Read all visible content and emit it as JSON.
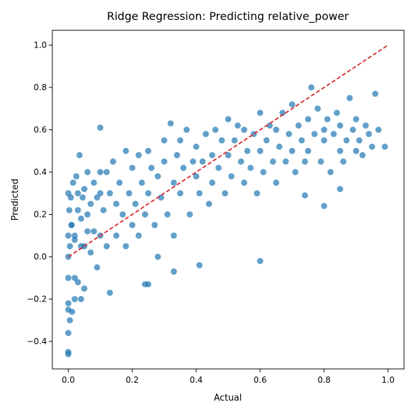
{
  "chart_data": {
    "type": "scatter",
    "title": "Ridge Regression: Predicting relative_power",
    "xlabel": "Actual",
    "ylabel": "Predicted",
    "xlim": [
      -0.05,
      1.05
    ],
    "ylim": [
      -0.53,
      1.07
    ],
    "xticks": [
      0.0,
      0.2,
      0.4,
      0.6,
      0.8,
      1.0
    ],
    "xtick_labels": [
      "0.0",
      "0.2",
      "0.4",
      "0.6",
      "0.8",
      "1.0"
    ],
    "yticks": [
      -0.4,
      -0.2,
      0.0,
      0.2,
      0.4,
      0.6,
      0.8,
      1.0
    ],
    "ytick_labels": [
      "−0.4",
      "−0.2",
      "0.0",
      "0.2",
      "0.4",
      "0.6",
      "0.8",
      "1.0"
    ],
    "grid": false,
    "point_color": "#1f77b4",
    "point_alpha": 0.7,
    "reference_line": {
      "x": [
        0.0,
        1.0
      ],
      "y": [
        0.0,
        1.0
      ],
      "color": "#d62728",
      "style": "dashed"
    },
    "series": [
      {
        "x": [
          0.0,
          0.0,
          0.0,
          0.0,
          0.0,
          0.0,
          0.003,
          0.005,
          0.005,
          0.008,
          0.01,
          0.012,
          0.015,
          0.02,
          0.02,
          0.025,
          0.03,
          0.03,
          0.035,
          0.04,
          0.04,
          0.045,
          0.05,
          0.05,
          0.06,
          0.06,
          0.07,
          0.07,
          0.08,
          0.08,
          0.09,
          0.09,
          0.1,
          0.1,
          0.1,
          0.11,
          0.12,
          0.12,
          0.13,
          0.14,
          0.15,
          0.15,
          0.16,
          0.17,
          0.18,
          0.18,
          0.19,
          0.2,
          0.2,
          0.21,
          0.22,
          0.22,
          0.23,
          0.24,
          0.25,
          0.25,
          0.26,
          0.27,
          0.28,
          0.28,
          0.29,
          0.3,
          0.3,
          0.31,
          0.32,
          0.33,
          0.33,
          0.34,
          0.35,
          0.35,
          0.36,
          0.37,
          0.38,
          0.39,
          0.4,
          0.4,
          0.41,
          0.42,
          0.43,
          0.44,
          0.45,
          0.45,
          0.46,
          0.47,
          0.48,
          0.49,
          0.5,
          0.5,
          0.51,
          0.52,
          0.53,
          0.54,
          0.55,
          0.55,
          0.56,
          0.57,
          0.58,
          0.59,
          0.6,
          0.6,
          0.61,
          0.62,
          0.63,
          0.64,
          0.65,
          0.65,
          0.66,
          0.67,
          0.68,
          0.69,
          0.7,
          0.7,
          0.71,
          0.72,
          0.73,
          0.74,
          0.75,
          0.75,
          0.76,
          0.77,
          0.78,
          0.79,
          0.8,
          0.8,
          0.81,
          0.82,
          0.83,
          0.84,
          0.85,
          0.85,
          0.86,
          0.87,
          0.88,
          0.89,
          0.9,
          0.9,
          0.91,
          0.92,
          0.93,
          0.94,
          0.95,
          0.96,
          0.97,
          0.99,
          0.0,
          0.0,
          0.01,
          0.02,
          0.03,
          0.05,
          0.1,
          0.25,
          0.33,
          0.41,
          0.6,
          0.74,
          0.8,
          0.85,
          0.0,
          0.02,
          0.04,
          0.06,
          0.13,
          0.24
        ],
        "y": [
          -0.46,
          -0.45,
          -0.36,
          -0.25,
          0.1,
          0.3,
          0.22,
          -0.3,
          0.05,
          0.28,
          0.15,
          -0.26,
          0.35,
          0.1,
          -0.2,
          0.38,
          0.22,
          -0.12,
          0.48,
          0.18,
          0.05,
          0.28,
          0.32,
          -0.15,
          0.2,
          0.4,
          0.25,
          0.02,
          0.35,
          0.12,
          0.28,
          -0.05,
          0.61,
          0.3,
          0.1,
          0.22,
          0.4,
          0.05,
          0.3,
          0.45,
          0.25,
          0.1,
          0.35,
          0.2,
          0.5,
          0.05,
          0.3,
          0.42,
          0.15,
          0.25,
          0.48,
          0.1,
          0.35,
          0.2,
          0.5,
          0.3,
          0.42,
          0.15,
          0.38,
          0.0,
          0.28,
          0.55,
          0.45,
          0.2,
          0.63,
          0.35,
          0.1,
          0.48,
          0.55,
          0.3,
          0.42,
          0.6,
          0.2,
          0.45,
          0.38,
          0.52,
          0.3,
          0.45,
          0.58,
          0.25,
          0.48,
          0.35,
          0.6,
          0.42,
          0.55,
          0.3,
          0.65,
          0.48,
          0.38,
          0.55,
          0.62,
          0.45,
          0.35,
          0.6,
          0.5,
          0.42,
          0.58,
          0.3,
          0.68,
          0.5,
          0.4,
          0.55,
          0.62,
          0.45,
          0.35,
          0.6,
          0.52,
          0.68,
          0.45,
          0.58,
          0.72,
          0.5,
          0.4,
          0.62,
          0.55,
          0.45,
          0.65,
          0.5,
          0.8,
          0.58,
          0.7,
          0.45,
          0.6,
          0.55,
          0.65,
          0.4,
          0.58,
          0.68,
          0.5,
          0.62,
          0.45,
          0.55,
          0.75,
          0.6,
          0.5,
          0.65,
          0.55,
          0.48,
          0.62,
          0.58,
          0.52,
          0.77,
          0.6,
          0.52,
          -0.22,
          0.0,
          0.15,
          -0.1,
          0.3,
          0.05,
          0.4,
          -0.13,
          -0.07,
          -0.04,
          -0.02,
          0.29,
          0.24,
          0.32,
          -0.1,
          0.08,
          -0.2,
          0.12,
          -0.17,
          -0.13
        ]
      }
    ]
  }
}
